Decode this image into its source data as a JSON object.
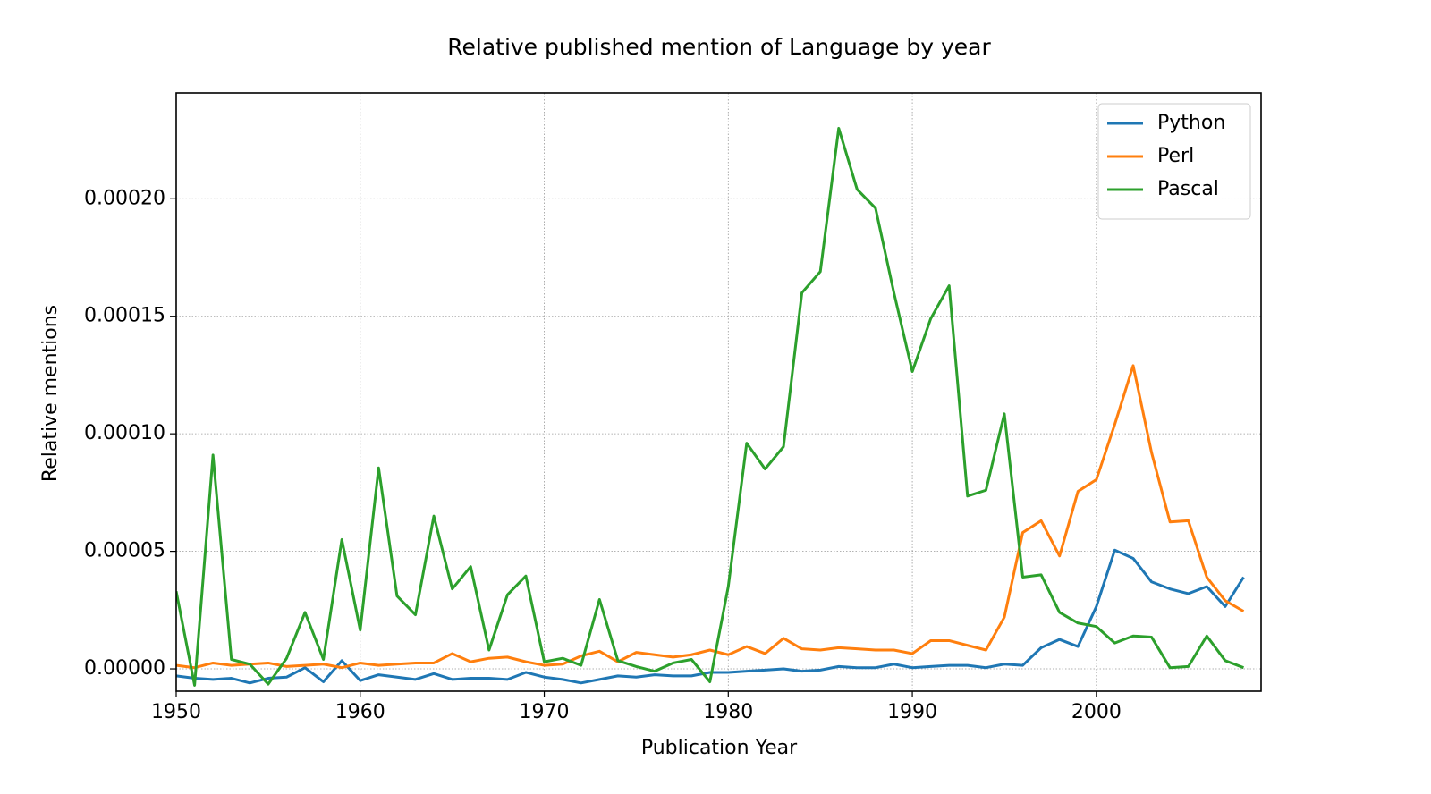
{
  "chart_data": {
    "type": "line",
    "title": "Relative published mention of Language by year",
    "x_label": "Publication Year",
    "y_label": "Relative mentions",
    "x": [
      1950,
      1951,
      1952,
      1953,
      1954,
      1955,
      1956,
      1957,
      1958,
      1959,
      1960,
      1961,
      1962,
      1963,
      1964,
      1965,
      1966,
      1967,
      1968,
      1969,
      1970,
      1971,
      1972,
      1973,
      1974,
      1975,
      1976,
      1977,
      1978,
      1979,
      1980,
      1981,
      1982,
      1983,
      1984,
      1985,
      1986,
      1987,
      1988,
      1989,
      1990,
      1991,
      1992,
      1993,
      1994,
      1995,
      1996,
      1997,
      1998,
      1999,
      2000,
      2001,
      2002,
      2003,
      2004,
      2005,
      2006,
      2007,
      2008
    ],
    "series": [
      {
        "name": "Python",
        "color": "#1f77b4",
        "values": [
          -3e-06,
          -4e-06,
          -4.5e-06,
          -4e-06,
          -6e-06,
          -4e-06,
          -3.5e-06,
          5e-07,
          -5.5e-06,
          3.5e-06,
          -5e-06,
          -2.5e-06,
          -3.5e-06,
          -4.5e-06,
          -2e-06,
          -4.5e-06,
          -4e-06,
          -4e-06,
          -4.5e-06,
          -1.5e-06,
          -3.5e-06,
          -4.5e-06,
          -6e-06,
          -4.5e-06,
          -3e-06,
          -3.5e-06,
          -2.5e-06,
          -3e-06,
          -3e-06,
          -1.5e-06,
          -1.5e-06,
          -1e-06,
          -5e-07,
          0,
          -1e-06,
          -5e-07,
          1e-06,
          5e-07,
          5e-07,
          2e-06,
          5e-07,
          1e-06,
          1.5e-06,
          1.5e-06,
          5e-07,
          2e-06,
          1.5e-06,
          9e-06,
          1.25e-05,
          9.5e-06,
          2.65e-05,
          5.05e-05,
          4.7e-05,
          3.7e-05,
          3.4e-05,
          3.2e-05,
          3.5e-05,
          2.65e-05,
          3.9e-05
        ]
      },
      {
        "name": "Perl",
        "color": "#ff7f0e",
        "values": [
          1.5e-06,
          5e-07,
          2.5e-06,
          1.5e-06,
          2e-06,
          2.5e-06,
          1e-06,
          1.5e-06,
          2e-06,
          5e-07,
          2.5e-06,
          1.5e-06,
          2e-06,
          2.5e-06,
          2.5e-06,
          6.5e-06,
          3e-06,
          4.5e-06,
          5e-06,
          3e-06,
          1.5e-06,
          2e-06,
          5.5e-06,
          7.5e-06,
          3e-06,
          7e-06,
          6e-06,
          5e-06,
          6e-06,
          8e-06,
          6e-06,
          9.5e-06,
          6.5e-06,
          1.3e-05,
          8.5e-06,
          8e-06,
          9e-06,
          8.5e-06,
          8e-06,
          8e-06,
          6.5e-06,
          1.2e-05,
          1.2e-05,
          1e-05,
          8e-06,
          2.2e-05,
          5.8e-05,
          6.3e-05,
          4.8e-05,
          7.55e-05,
          8.05e-05,
          0.000104,
          0.000129,
          9.2e-05,
          6.25e-05,
          6.3e-05,
          3.9e-05,
          2.9e-05,
          2.45e-05
        ]
      },
      {
        "name": "Pascal",
        "color": "#2ca02c",
        "values": [
          3.3e-05,
          -7e-06,
          9.1e-05,
          4e-06,
          2e-06,
          -6.5e-06,
          4.5e-06,
          2.4e-05,
          4e-06,
          5.5e-05,
          1.65e-05,
          8.55e-05,
          3.1e-05,
          2.3e-05,
          6.5e-05,
          3.4e-05,
          4.35e-05,
          8e-06,
          3.15e-05,
          3.95e-05,
          3e-06,
          4.5e-06,
          1.5e-06,
          2.95e-05,
          3.5e-06,
          1e-06,
          -1e-06,
          2.5e-06,
          4e-06,
          -5.5e-06,
          3.5e-05,
          9.6e-05,
          8.5e-05,
          9.45e-05,
          0.00016,
          0.000169,
          0.00023,
          0.000204,
          0.000196,
          0.00016,
          0.0001265,
          0.000149,
          0.000163,
          7.35e-05,
          7.6e-05,
          0.0001085,
          3.9e-05,
          4e-05,
          2.4e-05,
          1.95e-05,
          1.8e-05,
          1.1e-05,
          1.4e-05,
          1.35e-05,
          5e-07,
          1e-06,
          1.4e-05,
          3.5e-06,
          5e-07
        ]
      }
    ],
    "xlim": [
      1950,
      2008.95
    ],
    "xticks": [
      1950,
      1960,
      1970,
      1980,
      1990,
      2000
    ],
    "ylim": [
      -9.5e-06,
      0.000245
    ],
    "yticks": [
      {
        "value": 0,
        "label": "0.00000"
      },
      {
        "value": 5e-05,
        "label": "0.00005"
      },
      {
        "value": 0.0001,
        "label": "0.00010"
      },
      {
        "value": 0.00015,
        "label": "0.00015"
      },
      {
        "value": 0.0002,
        "label": "0.00020"
      }
    ],
    "grid": true,
    "legend": "upper-right"
  }
}
